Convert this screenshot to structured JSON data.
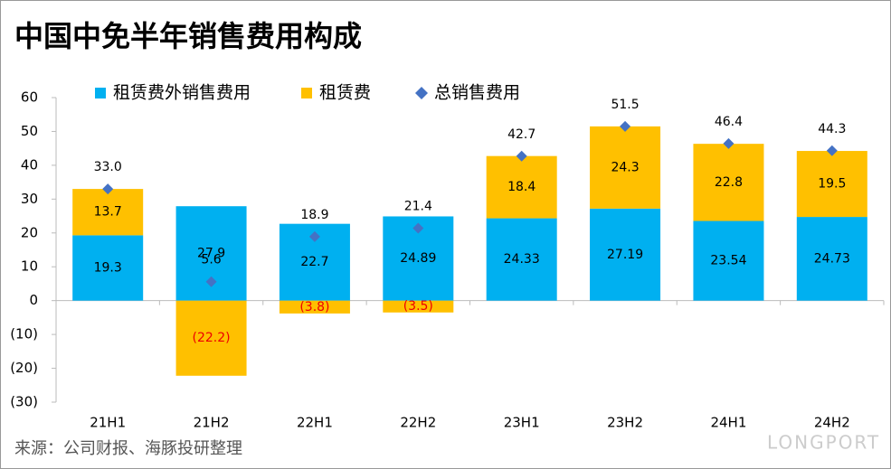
{
  "chart_data": {
    "type": "bar",
    "stacked": true,
    "title": "中国中免半年销售费用构成",
    "source": "来源：公司财报、海豚投研整理",
    "watermark": "LONGPORT",
    "categories": [
      "21H1",
      "21H2",
      "22H1",
      "22H2",
      "23H1",
      "23H2",
      "24H1",
      "24H2"
    ],
    "series": [
      {
        "name": "租赁费外销售费用",
        "color": "#00b0f0",
        "values": [
          19.3,
          27.9,
          22.7,
          24.89,
          24.33,
          27.19,
          23.54,
          24.73
        ]
      },
      {
        "name": "租赁费",
        "color": "#ffc000",
        "values": [
          13.7,
          -22.2,
          -3.8,
          -3.5,
          18.4,
          24.3,
          22.8,
          19.5
        ],
        "value_labels": [
          "13.7",
          "(22.2)",
          "(3.8)",
          "(3.5)",
          "18.4",
          "24.3",
          "22.8",
          "19.5"
        ]
      },
      {
        "name": "总销售费用",
        "type": "scatter",
        "marker": "diamond",
        "color": "#4472c4",
        "values": [
          33.0,
          5.6,
          18.9,
          21.4,
          42.7,
          51.5,
          46.4,
          44.3
        ],
        "value_labels": [
          "33.0",
          "5.6",
          "18.9",
          "21.4",
          "42.7",
          "51.5",
          "46.4",
          "44.3"
        ]
      }
    ],
    "ylim": [
      -30,
      60
    ],
    "yticks": [
      60,
      50,
      40,
      30,
      20,
      10,
      0,
      {
        "value": -10,
        "label": "(10)"
      },
      {
        "value": -20,
        "label": "(20)"
      },
      {
        "value": -30,
        "label": "(30)"
      }
    ],
    "grid": false
  }
}
